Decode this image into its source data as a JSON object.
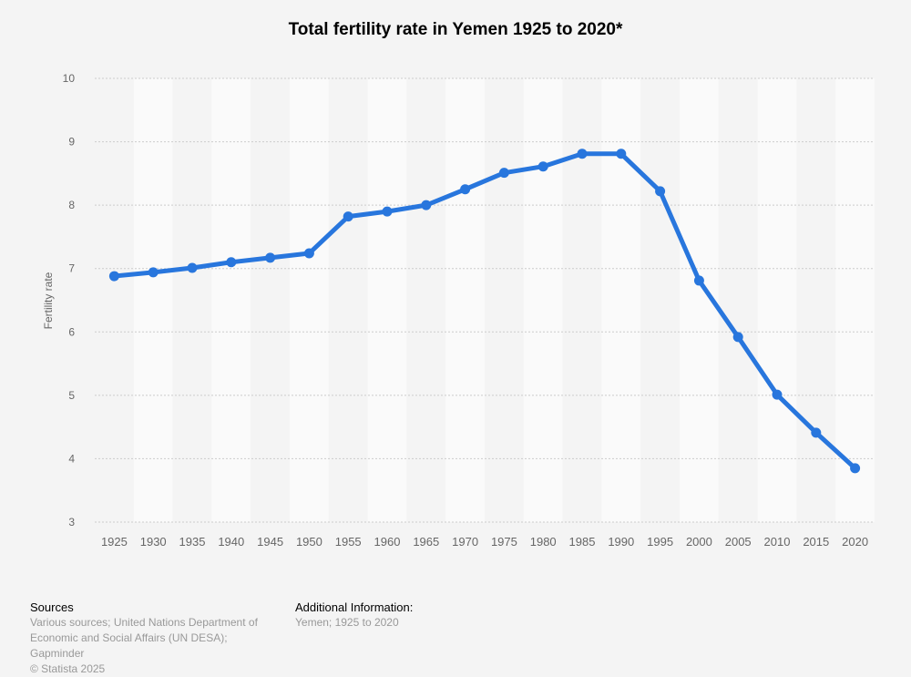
{
  "chart_data": {
    "type": "line",
    "title": "Total fertility rate in Yemen 1925 to 2020*",
    "xlabel": "",
    "ylabel": "Fertility rate",
    "ylim": [
      3,
      10
    ],
    "yticks": [
      "3",
      "4",
      "5",
      "6",
      "7",
      "8",
      "9",
      "10"
    ],
    "categories": [
      "1925",
      "1930",
      "1935",
      "1940",
      "1945",
      "1950",
      "1955",
      "1960",
      "1965",
      "1970",
      "1975",
      "1980",
      "1985",
      "1990",
      "1995",
      "2000",
      "2005",
      "2010",
      "2015",
      "2020"
    ],
    "series": [
      {
        "name": "Fertility rate",
        "color": "#2876dd",
        "values": [
          6.88,
          6.94,
          7.01,
          7.1,
          7.17,
          7.24,
          7.82,
          7.9,
          8.0,
          8.25,
          8.51,
          8.61,
          8.81,
          8.81,
          8.22,
          6.81,
          5.92,
          5.01,
          4.41,
          3.85
        ]
      }
    ],
    "grid": true,
    "legend": "none"
  },
  "footer": {
    "sources_heading": "Sources",
    "sources_lines": [
      "Various sources; United Nations Department of",
      "Economic and Social Affairs (UN DESA);",
      "Gapminder"
    ],
    "copyright": "© Statista 2025",
    "additional_heading": "Additional Information:",
    "additional_text": "Yemen; 1925 to 2020"
  }
}
